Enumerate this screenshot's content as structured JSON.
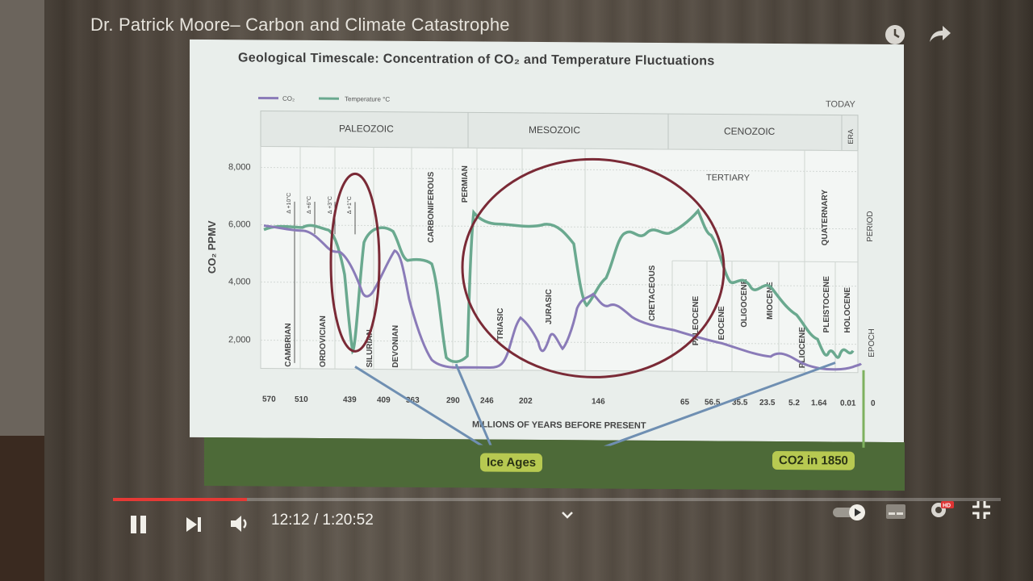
{
  "video": {
    "title": "Dr. Patrick Moore– Carbon and Climate Catastrophe",
    "time_current": "12:12",
    "time_separator": " / ",
    "time_total": "1:20:52",
    "progress_fraction": 0.151,
    "icons": [
      "clock-icon",
      "share-icon",
      "pause-icon",
      "next-icon",
      "volume-icon",
      "chevron-down-icon",
      "autoplay-toggle-icon",
      "subtitles-icon",
      "settings-icon",
      "fullscreen-exit-icon"
    ],
    "hd_badge": "HD"
  },
  "slide": {
    "title": "Geological Timescale: Concentration of CO₂ and Temperature Fluctuations",
    "legend": [
      "CO₂",
      "Temperature °C"
    ],
    "today": "TODAY",
    "eras": [
      "PALEOZOIC",
      "MESOZOIC",
      "CENOZOIC"
    ],
    "era_label": "ERA",
    "period_label": "PERIOD",
    "epoch_label": "EPOCH",
    "tertiary": "TERTIARY",
    "quaternary": "QUATERNARY",
    "periods": [
      "CAMBRIAN",
      "ORDOVICIAN",
      "SILURIAN",
      "DEVONIAN",
      "CARBONIFEROUS",
      "PERMIAN",
      "TRIASIC",
      "JURASIC",
      "CRETACEOUS"
    ],
    "epochs": [
      "PALEOCENE",
      "EOCENE",
      "OLIGOCENE",
      "MIOCENE",
      "PLIOCENE",
      "PLEISTOCENE",
      "HOLOCENE"
    ],
    "temp_marks": [
      "Δ +10°C",
      "Δ +6°C",
      "Δ +3°C",
      "Δ +1°C"
    ],
    "ylabel": "CO₂ PPMV",
    "yticks": [
      "8,000",
      "6,000",
      "4,000",
      "2,000"
    ],
    "xticks": [
      "570",
      "510",
      "439",
      "409",
      "363",
      "290",
      "246",
      "202",
      "146",
      "65",
      "56.5",
      "35.5",
      "23.5",
      "5.2",
      "1.64",
      "0.01",
      "0"
    ],
    "xlabel": "MILLIONS OF YEARS BEFORE PRESENT",
    "callouts": {
      "ice_ages": "Ice Ages",
      "co2_1850": "CO2 in 1850"
    }
  },
  "colors": {
    "co2": "#8a7bb8",
    "temperature": "#6aa98f",
    "circle": "#7a2a36",
    "callout": "#b7c951"
  }
}
